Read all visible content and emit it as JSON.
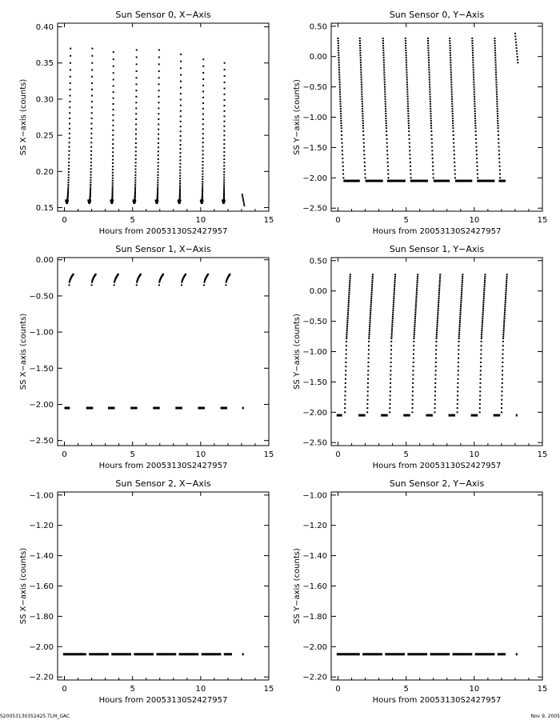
{
  "footer": {
    "left": "S20053130352425.TLM_GAC",
    "right": "Nov  9, 2005"
  },
  "chart_data": [
    {
      "type": "scatter",
      "title": "Sun Sensor 0, X−Axis",
      "xlabel": "Hours from 20053130S2427957",
      "ylabel": "SS X−axis (counts)",
      "xlim": [
        -0.5,
        15
      ],
      "ylim": [
        0.145,
        0.405
      ],
      "xticks": [
        0,
        5,
        10,
        15
      ],
      "yticks": [
        0.15,
        0.2,
        0.25,
        0.3,
        0.35,
        0.4
      ],
      "ytick_decimals": 2,
      "cycle_starts": [
        0.2,
        1.85,
        3.5,
        5.15,
        6.8,
        8.45,
        10.1,
        11.7
      ],
      "cycle_peak_hour": [
        0.45,
        2.05,
        3.6,
        5.3,
        6.95,
        8.55,
        10.2,
        11.75
      ],
      "cycle_base": 0.16,
      "cycle_peaks": [
        0.37,
        0.37,
        0.365,
        0.368,
        0.368,
        0.362,
        0.355,
        0.35
      ],
      "tail_segment": {
        "x": [
          13.05,
          13.2
        ],
        "y": [
          0.168,
          0.153
        ]
      }
    },
    {
      "type": "scatter",
      "title": "Sun Sensor 0, Y−Axis",
      "xlabel": "Hours from 20053130S2427957",
      "ylabel": "SS Y−axis (counts)",
      "xlim": [
        -0.5,
        15
      ],
      "ylim": [
        -2.55,
        0.55
      ],
      "xticks": [
        0,
        5,
        10,
        15
      ],
      "yticks": [
        -2.5,
        -2.0,
        -1.5,
        -1.0,
        -0.5,
        0.0,
        0.5
      ],
      "ytick_decimals": 2,
      "cycle_starts": [
        0.0,
        1.6,
        3.3,
        4.95,
        6.6,
        8.2,
        9.85,
        11.5
      ],
      "ramp_top": 0.3,
      "ramp_knee": -0.3,
      "ramp_bottom": -2.0,
      "floor_level": -2.05,
      "floor_segments": [
        [
          0.4,
          1.6
        ],
        [
          2.0,
          3.3
        ],
        [
          3.6,
          4.95
        ],
        [
          5.3,
          6.6
        ],
        [
          7.0,
          8.2
        ],
        [
          8.6,
          9.85
        ],
        [
          10.2,
          11.5
        ],
        [
          11.8,
          12.3
        ]
      ],
      "tail_segment": {
        "x": [
          13.0,
          13.2
        ],
        "y": [
          0.38,
          -0.1
        ]
      }
    },
    {
      "type": "scatter",
      "title": "Sun Sensor 1, X−Axis",
      "xlabel": "Hours from 20053130S2427957",
      "ylabel": "SS X−axis (counts)",
      "xlim": [
        -0.5,
        15
      ],
      "ylim": [
        -2.57,
        0.03
      ],
      "xticks": [
        0,
        5,
        10,
        15
      ],
      "yticks": [
        -2.5,
        -2.0,
        -1.5,
        -1.0,
        -0.5,
        0.0
      ],
      "ytick_decimals": 2,
      "cycle_starts": [
        0.35,
        2.0,
        3.65,
        5.3,
        6.95,
        8.6,
        10.25,
        11.85
      ],
      "arc_low": -0.35,
      "arc_high": -0.2,
      "floor_level": -2.05,
      "floor_segments": [
        [
          0.0,
          0.4
        ],
        [
          1.6,
          2.1
        ],
        [
          3.2,
          3.7
        ],
        [
          4.85,
          5.35
        ],
        [
          6.5,
          7.0
        ],
        [
          8.15,
          8.65
        ],
        [
          9.8,
          10.3
        ],
        [
          11.45,
          11.95
        ],
        [
          13.05,
          13.15
        ]
      ]
    },
    {
      "type": "scatter",
      "title": "Sun Sensor 1, Y−Axis",
      "xlabel": "Hours from 20053130S2427957",
      "ylabel": "SS Y−axis (counts)",
      "xlim": [
        -0.5,
        15
      ],
      "ylim": [
        -2.55,
        0.55
      ],
      "xticks": [
        0,
        5,
        10,
        15
      ],
      "yticks": [
        -2.5,
        -2.0,
        -1.5,
        -1.0,
        -0.5,
        0.0,
        0.5
      ],
      "ytick_decimals": 2,
      "cycle_starts": [
        0.5,
        2.15,
        3.8,
        5.45,
        7.1,
        8.75,
        10.4,
        12.0
      ],
      "ramp_bottom": -2.0,
      "ramp_knee": -0.8,
      "ramp_top": 0.27,
      "floor_level": -2.05,
      "floor_segments": [
        [
          -0.1,
          0.3
        ],
        [
          1.5,
          2.0
        ],
        [
          3.15,
          3.65
        ],
        [
          4.8,
          5.3
        ],
        [
          6.45,
          6.95
        ],
        [
          8.1,
          8.6
        ],
        [
          9.75,
          10.25
        ],
        [
          11.4,
          11.9
        ],
        [
          13.05,
          13.15
        ]
      ]
    },
    {
      "type": "scatter",
      "title": "Sun Sensor 2, X−Axis",
      "xlabel": "Hours from 20053130S2427957",
      "ylabel": "SS X−axis (counts)",
      "xlim": [
        -0.5,
        15
      ],
      "ylim": [
        -2.22,
        -0.98
      ],
      "xticks": [
        0,
        5,
        10,
        15
      ],
      "yticks": [
        -2.2,
        -2.0,
        -1.8,
        -1.6,
        -1.4,
        -1.2,
        -1.0
      ],
      "ytick_decimals": 2,
      "floor_level": -2.05,
      "floor_segments": [
        [
          -0.1,
          1.6
        ],
        [
          1.8,
          3.25
        ],
        [
          3.45,
          4.9
        ],
        [
          5.1,
          6.55
        ],
        [
          6.75,
          8.2
        ],
        [
          8.4,
          9.85
        ],
        [
          10.05,
          11.5
        ],
        [
          11.7,
          12.3
        ],
        [
          13.05,
          13.15
        ]
      ]
    },
    {
      "type": "scatter",
      "title": "Sun Sensor 2, Y−Axis",
      "xlabel": "Hours from 20053130S2427957",
      "ylabel": "SS Y−axis (counts)",
      "xlim": [
        -0.5,
        15
      ],
      "ylim": [
        -2.22,
        -0.98
      ],
      "xticks": [
        0,
        5,
        10,
        15
      ],
      "yticks": [
        -2.2,
        -2.0,
        -1.8,
        -1.6,
        -1.4,
        -1.2,
        -1.0
      ],
      "ytick_decimals": 2,
      "floor_level": -2.05,
      "floor_segments": [
        [
          -0.1,
          1.6
        ],
        [
          1.8,
          3.25
        ],
        [
          3.45,
          4.9
        ],
        [
          5.1,
          6.55
        ],
        [
          6.75,
          8.2
        ],
        [
          8.4,
          9.85
        ],
        [
          10.05,
          11.5
        ],
        [
          11.7,
          12.3
        ],
        [
          13.05,
          13.15
        ]
      ]
    }
  ]
}
